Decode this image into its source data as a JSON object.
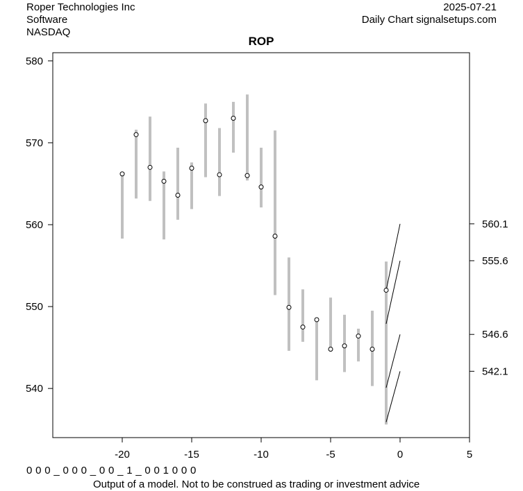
{
  "header": {
    "company": "Roper Technologies Inc",
    "sector": "Software",
    "exchange": "NASDAQ",
    "date": "2025-07-21",
    "source": "Daily Chart signalsetups.com"
  },
  "footer": {
    "code": "0 0 0 _ 0 0 0 _ 0 0 _ 1 _ 0 0 1 0 0 0",
    "disclaimer": "Output of a model. Not to be construed as trading or investment advice"
  },
  "chart_data": {
    "type": "scatter",
    "title": "ROP",
    "xlim": [
      -25,
      5
    ],
    "ylim": [
      534,
      581
    ],
    "x_ticks": [
      -20,
      -15,
      -10,
      -5,
      0,
      5
    ],
    "y_ticks": [
      540,
      550,
      560,
      570,
      580
    ],
    "right_labels": [
      560.1,
      555.6,
      546.6,
      542.1
    ],
    "colors": {
      "range_bar": "#c0c0c0",
      "projection": "#000000",
      "point_fill": "#ffffff"
    },
    "series": [
      {
        "kind": "daily_range_with_close",
        "points": [
          {
            "x": -20,
            "low": 558.3,
            "high": 566.4,
            "close": 566.2
          },
          {
            "x": -19,
            "low": 563.2,
            "high": 571.6,
            "close": 571.0
          },
          {
            "x": -18,
            "low": 562.9,
            "high": 573.2,
            "close": 567.0
          },
          {
            "x": -17,
            "low": 558.2,
            "high": 566.5,
            "close": 565.3
          },
          {
            "x": -16,
            "low": 560.6,
            "high": 569.4,
            "close": 563.6
          },
          {
            "x": -15,
            "low": 561.9,
            "high": 567.6,
            "close": 566.9
          },
          {
            "x": -14,
            "low": 565.8,
            "high": 574.8,
            "close": 572.7
          },
          {
            "x": -13,
            "low": 563.5,
            "high": 571.8,
            "close": 566.1
          },
          {
            "x": -12,
            "low": 568.8,
            "high": 575.0,
            "close": 573.0
          },
          {
            "x": -11,
            "low": 565.4,
            "high": 575.9,
            "close": 566.0
          },
          {
            "x": -10,
            "low": 562.1,
            "high": 569.4,
            "close": 564.6
          },
          {
            "x": -9,
            "low": 551.4,
            "high": 571.5,
            "close": 558.6
          },
          {
            "x": -8,
            "low": 544.6,
            "high": 556.0,
            "close": 549.9
          },
          {
            "x": -7,
            "low": 545.7,
            "high": 552.1,
            "close": 547.5
          },
          {
            "x": -6,
            "low": 541.0,
            "high": 548.5,
            "close": 548.4
          },
          {
            "x": -5,
            "low": 544.5,
            "high": 551.1,
            "close": 544.8
          },
          {
            "x": -4,
            "low": 542.0,
            "high": 549.0,
            "close": 545.2
          },
          {
            "x": -3,
            "low": 543.3,
            "high": 547.3,
            "close": 546.4
          },
          {
            "x": -2,
            "low": 540.3,
            "high": 549.5,
            "close": 544.8
          },
          {
            "x": -1,
            "low": 535.6,
            "high": 555.5,
            "close": 552.0
          }
        ]
      },
      {
        "kind": "projection_lines",
        "lines": [
          {
            "x": [
              -1,
              0
            ],
            "y": [
              552.0,
              560.1
            ]
          },
          {
            "x": [
              -1,
              0
            ],
            "y": [
              547.9,
              555.6
            ]
          },
          {
            "x": [
              -1,
              0
            ],
            "y": [
              540.1,
              546.6
            ]
          },
          {
            "x": [
              -1,
              0
            ],
            "y": [
              535.9,
              542.1
            ]
          }
        ]
      }
    ]
  }
}
